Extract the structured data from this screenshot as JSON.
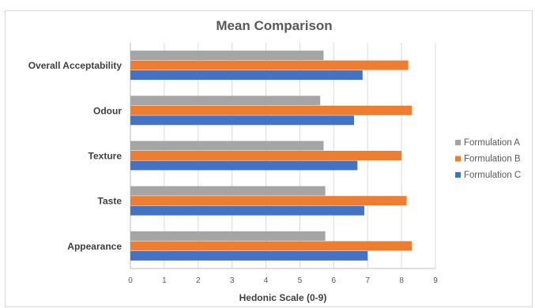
{
  "chart_data": {
    "type": "bar",
    "orientation": "horizontal",
    "title": "Mean Comparison",
    "xlabel": "Hedonic Scale (0-9)",
    "ylabel": "",
    "xlim": [
      0,
      9
    ],
    "x_ticks": [
      "0",
      "1",
      "2",
      "3",
      "4",
      "5",
      "6",
      "7",
      "8",
      "9"
    ],
    "categories": [
      "Overall Acceptability",
      "Odour",
      "Texture",
      "Taste",
      "Appearance"
    ],
    "series": [
      {
        "name": "Formulation A",
        "color": "#a5a5a5",
        "values": [
          5.7,
          5.6,
          5.7,
          5.75,
          5.75
        ]
      },
      {
        "name": "Formulation B",
        "color": "#ed7d31",
        "values": [
          8.2,
          8.3,
          8.0,
          8.15,
          8.3
        ]
      },
      {
        "name": "Formulation C",
        "color": "#4472c4",
        "values": [
          6.85,
          6.6,
          6.7,
          6.9,
          7.0
        ]
      }
    ],
    "grid": true,
    "legend_position": "right"
  }
}
